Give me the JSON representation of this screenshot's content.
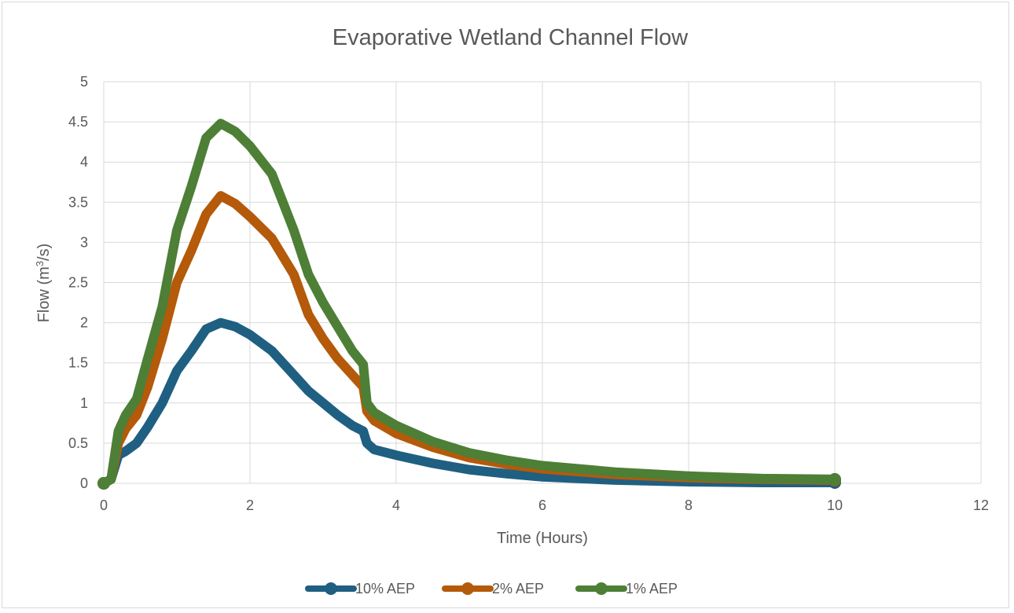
{
  "chart_data": {
    "type": "line",
    "title": "Evaporative Wetland Channel Flow",
    "xlabel": "Time (Hours)",
    "ylabel_main": "Flow (m",
    "ylabel_sup": "3",
    "ylabel_tail": "/s)",
    "xlim": [
      0,
      12
    ],
    "ylim": [
      0,
      5
    ],
    "xticks": [
      "0",
      "2",
      "4",
      "6",
      "8",
      "10",
      "12"
    ],
    "yticks": [
      "0",
      "0.5",
      "1",
      "1.5",
      "2",
      "2.5",
      "3",
      "3.5",
      "4",
      "4.5",
      "5"
    ],
    "grid": true,
    "legend_position": "bottom",
    "series": [
      {
        "name": "10% AEP",
        "color": "#1f5f82",
        "x": [
          0,
          0.1,
          0.2,
          0.3,
          0.45,
          0.6,
          0.8,
          1.0,
          1.2,
          1.4,
          1.6,
          1.8,
          2.0,
          2.3,
          2.6,
          2.8,
          3.0,
          3.2,
          3.4,
          3.55,
          3.6,
          3.7,
          4.0,
          4.5,
          5.0,
          5.5,
          6.0,
          7.0,
          8.0,
          9.0,
          10.0
        ],
        "values": [
          0,
          0.05,
          0.35,
          0.4,
          0.5,
          0.7,
          1.0,
          1.4,
          1.65,
          1.92,
          2.0,
          1.95,
          1.85,
          1.65,
          1.35,
          1.15,
          1.0,
          0.85,
          0.72,
          0.65,
          0.5,
          0.42,
          0.35,
          0.25,
          0.17,
          0.12,
          0.08,
          0.04,
          0.02,
          0.01,
          0.01
        ]
      },
      {
        "name": "2% AEP",
        "color": "#b45a0a",
        "x": [
          0,
          0.1,
          0.2,
          0.3,
          0.45,
          0.6,
          0.8,
          1.0,
          1.2,
          1.4,
          1.6,
          1.8,
          2.0,
          2.3,
          2.6,
          2.8,
          3.0,
          3.2,
          3.4,
          3.55,
          3.6,
          3.7,
          4.0,
          4.5,
          5.0,
          5.5,
          6.0,
          7.0,
          8.0,
          9.0,
          10.0
        ],
        "values": [
          0,
          0.05,
          0.5,
          0.68,
          0.85,
          1.2,
          1.8,
          2.5,
          2.9,
          3.35,
          3.58,
          3.48,
          3.32,
          3.05,
          2.6,
          2.1,
          1.8,
          1.55,
          1.35,
          1.2,
          0.9,
          0.78,
          0.62,
          0.45,
          0.32,
          0.24,
          0.18,
          0.11,
          0.07,
          0.05,
          0.04
        ]
      },
      {
        "name": "1% AEP",
        "color": "#4d7f36",
        "x": [
          0,
          0.1,
          0.2,
          0.3,
          0.45,
          0.6,
          0.8,
          1.0,
          1.2,
          1.4,
          1.6,
          1.8,
          2.0,
          2.3,
          2.6,
          2.8,
          3.0,
          3.2,
          3.4,
          3.55,
          3.6,
          3.7,
          4.0,
          4.5,
          5.0,
          5.5,
          6.0,
          7.0,
          8.0,
          9.0,
          10.0
        ],
        "values": [
          0,
          0.05,
          0.65,
          0.85,
          1.05,
          1.55,
          2.2,
          3.15,
          3.7,
          4.3,
          4.48,
          4.38,
          4.2,
          3.85,
          3.15,
          2.6,
          2.25,
          1.95,
          1.65,
          1.48,
          1.0,
          0.88,
          0.72,
          0.52,
          0.38,
          0.29,
          0.22,
          0.14,
          0.09,
          0.06,
          0.05
        ]
      }
    ]
  }
}
